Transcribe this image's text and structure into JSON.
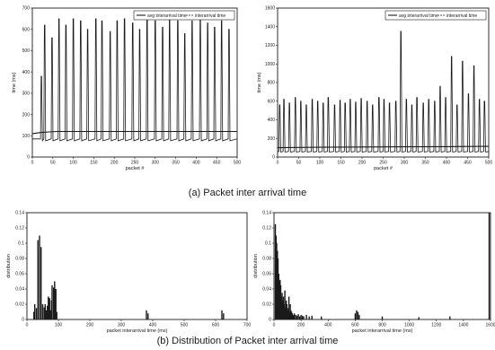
{
  "figure": {
    "caption_a": "(a) Packet inter arrival time",
    "caption_b": "(b) Distribution of Packet inter arrival time"
  },
  "chart_data": [
    {
      "type": "line",
      "title": "",
      "xlabel": "packet #",
      "ylabel": "time (ms)",
      "xlim": [
        0,
        500
      ],
      "ylim": [
        0,
        700
      ],
      "x_ticks": [
        0,
        50,
        100,
        150,
        200,
        250,
        300,
        350,
        400,
        450,
        500
      ],
      "y_ticks": [
        0,
        100,
        200,
        300,
        400,
        500,
        600,
        700
      ],
      "legend": {
        "position": "top-right",
        "entries": [
          "avg interarrival time",
          "interarrival time"
        ]
      },
      "grid": false,
      "series": [
        {
          "name": "interarrival time",
          "style": "spikes",
          "baseline": 85,
          "x": [
            22,
            30,
            48,
            65,
            82,
            100,
            118,
            135,
            155,
            170,
            190,
            207,
            225,
            245,
            262,
            280,
            300,
            318,
            335,
            355,
            372,
            390,
            410,
            428,
            445,
            462,
            480
          ],
          "values": [
            380,
            620,
            560,
            650,
            620,
            650,
            640,
            600,
            650,
            640,
            590,
            640,
            650,
            630,
            600,
            650,
            640,
            610,
            650,
            640,
            580,
            640,
            650,
            630,
            610,
            640,
            600
          ]
        },
        {
          "name": "avg interarrival time",
          "style": "line",
          "x": [
            0,
            20,
            40,
            60,
            100,
            200,
            300,
            400,
            500
          ],
          "values": [
            110,
            115,
            118,
            120,
            120,
            120,
            120,
            120,
            120
          ]
        }
      ]
    },
    {
      "type": "line",
      "title": "",
      "xlabel": "packet #",
      "ylabel": "time (ms)",
      "xlim": [
        0,
        500
      ],
      "ylim": [
        0,
        1600
      ],
      "x_ticks": [
        0,
        50,
        100,
        150,
        200,
        250,
        300,
        350,
        400,
        450,
        500
      ],
      "y_ticks": [
        0,
        200,
        400,
        600,
        800,
        1000,
        1200,
        1400,
        1600
      ],
      "legend": {
        "position": "top-right",
        "entries": [
          "avg interarrival time",
          "interarrival time"
        ]
      },
      "grid": false,
      "series": [
        {
          "name": "interarrival time",
          "style": "spikes",
          "baseline": 60,
          "x": [
            5,
            15,
            28,
            42,
            55,
            68,
            82,
            95,
            108,
            120,
            135,
            148,
            160,
            172,
            185,
            198,
            212,
            225,
            240,
            252,
            265,
            280,
            292,
            305,
            318,
            330,
            345,
            358,
            372,
            385,
            398,
            412,
            425,
            438,
            452,
            465,
            478,
            490
          ],
          "values": [
            560,
            620,
            580,
            640,
            600,
            560,
            620,
            600,
            580,
            640,
            560,
            610,
            580,
            620,
            590,
            630,
            600,
            560,
            640,
            620,
            580,
            600,
            1350,
            620,
            560,
            640,
            580,
            620,
            600,
            760,
            640,
            1080,
            560,
            1030,
            680,
            980,
            620,
            600
          ]
        },
        {
          "name": "avg interarrival time",
          "style": "line",
          "x": [
            0,
            100,
            200,
            300,
            400,
            500
          ],
          "values": [
            100,
            105,
            108,
            110,
            112,
            115
          ]
        }
      ]
    },
    {
      "type": "bar",
      "title": "",
      "xlabel": "packet interarrival time (ms)",
      "ylabel": "distribution",
      "xlim": [
        0,
        700
      ],
      "ylim": [
        0,
        0.14
      ],
      "x_ticks": [
        0,
        100,
        200,
        300,
        400,
        500,
        600,
        700
      ],
      "y_ticks": [
        0,
        0.02,
        0.04,
        0.06,
        0.08,
        0.1,
        0.12,
        0.14
      ],
      "grid": false,
      "x": [
        22,
        25,
        30,
        35,
        40,
        45,
        50,
        55,
        58,
        62,
        65,
        68,
        72,
        75,
        78,
        80,
        85,
        88,
        92,
        95,
        380,
        385,
        620,
        625
      ],
      "values": [
        0.01,
        0.02,
        0.015,
        0.104,
        0.11,
        0.095,
        0.02,
        0.016,
        0.02,
        0.012,
        0.018,
        0.03,
        0.028,
        0.012,
        0.025,
        0.045,
        0.042,
        0.05,
        0.04,
        0.01,
        0.012,
        0.008,
        0.012,
        0.008
      ]
    },
    {
      "type": "bar",
      "title": "",
      "xlabel": "packet interarrival time (ms)",
      "ylabel": "distribution",
      "xlim": [
        0,
        1600
      ],
      "ylim": [
        0,
        0.14
      ],
      "x_ticks": [
        0,
        200,
        400,
        600,
        800,
        1000,
        1200,
        1400,
        1600
      ],
      "y_ticks": [
        0,
        0.02,
        0.04,
        0.06,
        0.08,
        0.1,
        0.12,
        0.14
      ],
      "grid": false,
      "x": [
        10,
        15,
        20,
        25,
        30,
        35,
        40,
        45,
        50,
        55,
        60,
        65,
        70,
        75,
        80,
        85,
        90,
        95,
        100,
        105,
        110,
        115,
        120,
        125,
        130,
        135,
        140,
        145,
        150,
        160,
        170,
        180,
        190,
        200,
        210,
        220,
        240,
        260,
        280,
        350,
        600,
        610,
        620,
        630,
        800,
        1070,
        1300,
        1590
      ],
      "values": [
        0.125,
        0.11,
        0.1,
        0.09,
        0.08,
        0.06,
        0.05,
        0.052,
        0.045,
        0.03,
        0.035,
        0.025,
        0.03,
        0.02,
        0.038,
        0.015,
        0.025,
        0.02,
        0.015,
        0.012,
        0.03,
        0.01,
        0.02,
        0.012,
        0.01,
        0.008,
        0.006,
        0.005,
        0.008,
        0.006,
        0.005,
        0.007,
        0.004,
        0.006,
        0.005,
        0.004,
        0.006,
        0.004,
        0.005,
        0.004,
        0.008,
        0.012,
        0.01,
        0.006,
        0.004,
        0.003,
        0.004,
        0.14
      ]
    }
  ]
}
